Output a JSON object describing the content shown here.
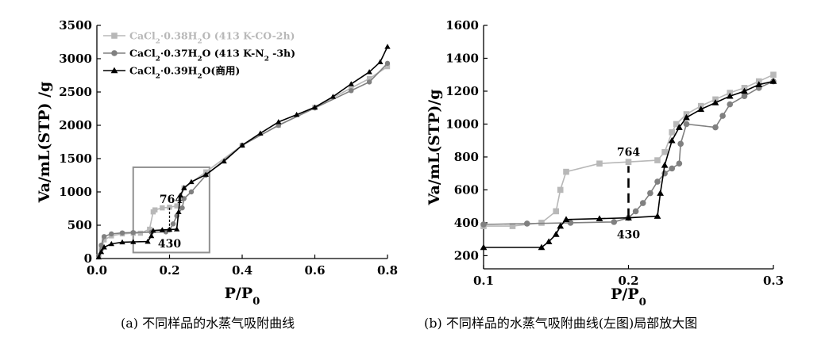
{
  "captions": {
    "a": "(a) 不同样品的水蒸气吸附曲线",
    "b": "(b) 不同样品的水蒸气吸附曲线(左图)局部放大图"
  },
  "colors": {
    "co": "#b8b8b8",
    "n2": "#808080",
    "commercial": "#000000",
    "box": "#909090"
  },
  "chart_data": [
    {
      "type": "line",
      "id": "a",
      "title": "",
      "xlabel": "P/P₀",
      "ylabel": "Va/mL(STP) /g",
      "xlim": [
        0,
        0.8
      ],
      "ylim": [
        0,
        3500
      ],
      "xticks": [
        "0.0",
        "0.2",
        "0.4",
        "0.6",
        "0.8"
      ],
      "xtick_values": [
        0,
        0.2,
        0.4,
        0.6,
        0.8
      ],
      "yticks": [
        "0",
        "500",
        "1000",
        "1500",
        "2000",
        "2500",
        "3000",
        "3500"
      ],
      "ytick_values": [
        0,
        500,
        1000,
        1500,
        2000,
        2500,
        3000,
        3500
      ],
      "legend": [
        "CaCl₂·0.38H₂O (413 K-CO-2h)",
        "CaCl₂·0.37H₂O (413 K-N₂ -3h)",
        "CaCl₂·0.39H₂O(商用)"
      ],
      "annotations": [
        "764",
        "430"
      ],
      "inset_box": {
        "x": [
          0.1,
          0.31
        ],
        "y": [
          90,
          1370
        ]
      },
      "series": [
        {
          "name": "CaCl₂·0.38H₂O (413 K-CO-2h)",
          "color_key": "co",
          "marker": "square",
          "x": [
            0.005,
            0.012,
            0.02,
            0.04,
            0.07,
            0.1,
            0.12,
            0.145,
            0.155,
            0.16,
            0.18,
            0.2,
            0.22,
            0.23,
            0.24,
            0.3,
            0.4,
            0.5,
            0.6,
            0.7,
            0.75,
            0.8
          ],
          "y": [
            30,
            150,
            280,
            340,
            370,
            380,
            380,
            440,
            700,
            730,
            760,
            770,
            790,
            900,
            1060,
            1300,
            1700,
            2000,
            2270,
            2560,
            2700,
            2880
          ]
        },
        {
          "name": "CaCl₂·0.37H₂O (413 K-N₂ -3h)",
          "color_key": "n2",
          "marker": "circle",
          "x": [
            0.005,
            0.012,
            0.02,
            0.04,
            0.07,
            0.1,
            0.15,
            0.19,
            0.2,
            0.21,
            0.22,
            0.235,
            0.24,
            0.26,
            0.3,
            0.4,
            0.5,
            0.6,
            0.7,
            0.75,
            0.8
          ],
          "y": [
            40,
            200,
            330,
            370,
            385,
            390,
            395,
            400,
            430,
            520,
            640,
            760,
            900,
            1000,
            1250,
            1700,
            2000,
            2260,
            2520,
            2650,
            2930
          ]
        },
        {
          "name": "CaCl₂·0.39H₂O(商用)",
          "color_key": "commercial",
          "marker": "triangle",
          "x": [
            0.005,
            0.012,
            0.02,
            0.04,
            0.07,
            0.1,
            0.14,
            0.15,
            0.155,
            0.18,
            0.2,
            0.22,
            0.225,
            0.23,
            0.24,
            0.26,
            0.3,
            0.35,
            0.4,
            0.45,
            0.5,
            0.55,
            0.6,
            0.65,
            0.7,
            0.75,
            0.78,
            0.8
          ],
          "y": [
            20,
            100,
            170,
            220,
            245,
            250,
            255,
            340,
            420,
            430,
            435,
            440,
            700,
            950,
            1060,
            1150,
            1260,
            1460,
            1700,
            1880,
            2050,
            2160,
            2270,
            2430,
            2620,
            2800,
            2950,
            3180
          ]
        }
      ]
    },
    {
      "type": "line",
      "id": "b",
      "title": "",
      "xlabel": "P/P₀",
      "ylabel": "Va/mL(STP)/g",
      "xlim": [
        0.1,
        0.3
      ],
      "ylim": [
        120,
        1600
      ],
      "xticks": [
        "0.1",
        "0.2",
        "0.3"
      ],
      "xtick_values": [
        0.1,
        0.2,
        0.3
      ],
      "yticks": [
        "200",
        "400",
        "600",
        "800",
        "1000",
        "1200",
        "1400",
        "1600"
      ],
      "ytick_values": [
        200,
        400,
        600,
        800,
        1000,
        1200,
        1400,
        1600
      ],
      "annotations": [
        "764",
        "430"
      ],
      "series": [
        {
          "name": "CaCl₂·0.38H₂O (413 K-CO-2h)",
          "color_key": "co",
          "marker": "square",
          "x": [
            0.1,
            0.12,
            0.14,
            0.15,
            0.153,
            0.157,
            0.18,
            0.2,
            0.22,
            0.225,
            0.23,
            0.233,
            0.24,
            0.25,
            0.26,
            0.27,
            0.28,
            0.29,
            0.3
          ],
          "y": [
            380,
            380,
            400,
            470,
            600,
            710,
            760,
            770,
            780,
            830,
            950,
            1000,
            1060,
            1110,
            1150,
            1190,
            1220,
            1260,
            1300
          ]
        },
        {
          "name": "CaCl₂·0.37H₂O (413 K-N₂ -3h)",
          "color_key": "n2",
          "marker": "circle",
          "x": [
            0.1,
            0.13,
            0.16,
            0.19,
            0.2,
            0.205,
            0.21,
            0.215,
            0.22,
            0.225,
            0.23,
            0.235,
            0.236,
            0.24,
            0.26,
            0.265,
            0.27,
            0.28,
            0.29,
            0.3
          ],
          "y": [
            390,
            395,
            400,
            405,
            430,
            470,
            520,
            580,
            650,
            700,
            730,
            760,
            880,
            1000,
            980,
            1050,
            1120,
            1170,
            1220,
            1260
          ]
        },
        {
          "name": "CaCl₂·0.39H₂O(商用)",
          "color_key": "commercial",
          "marker": "triangle",
          "x": [
            0.1,
            0.14,
            0.145,
            0.15,
            0.153,
            0.157,
            0.18,
            0.2,
            0.22,
            0.222,
            0.225,
            0.23,
            0.235,
            0.24,
            0.25,
            0.26,
            0.27,
            0.28,
            0.29,
            0.3
          ],
          "y": [
            250,
            250,
            285,
            330,
            380,
            420,
            425,
            430,
            440,
            580,
            750,
            900,
            980,
            1040,
            1090,
            1130,
            1170,
            1200,
            1240,
            1260
          ]
        }
      ]
    }
  ]
}
